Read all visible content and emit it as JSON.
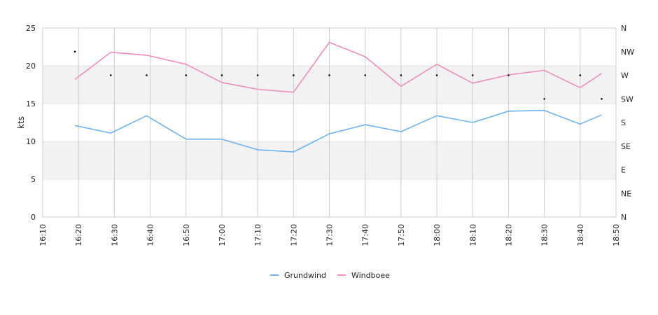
{
  "chart_data": {
    "type": "line",
    "ylabel": "kts",
    "ylim": [
      0,
      25
    ],
    "y_ticks": [
      "0",
      "5",
      "10",
      "15",
      "20",
      "25"
    ],
    "x_range": [
      "16:10",
      "18:50"
    ],
    "x_ticks": [
      "16:10",
      "16:20",
      "16:30",
      "16:40",
      "16:50",
      "17:00",
      "17:10",
      "17:20",
      "17:30",
      "17:40",
      "17:50",
      "18:00",
      "18:10",
      "18:20",
      "18:30",
      "18:40",
      "18:50"
    ],
    "direction_axis_labels": [
      "N",
      "NE",
      "E",
      "SE",
      "S",
      "SW",
      "W",
      "NW",
      "N"
    ],
    "grid": "vertical lines at x ticks; alternating shaded bands 5–10 and 15–20",
    "legend_position": "bottom-center",
    "x": [
      "16:19",
      "16:29",
      "16:39",
      "16:50",
      "17:00",
      "17:10",
      "17:20",
      "17:30",
      "17:40",
      "17:50",
      "18:00",
      "18:10",
      "18:20",
      "18:30",
      "18:40",
      "18:46"
    ],
    "series": [
      {
        "name": "Grundwind",
        "color": "#6eb4f0",
        "values": [
          12.1,
          11.1,
          13.4,
          10.3,
          10.3,
          8.9,
          8.6,
          11.0,
          12.2,
          11.3,
          13.4,
          12.5,
          14.0,
          14.1,
          12.3,
          13.5
        ]
      },
      {
        "name": "Windboee",
        "color": "#f08cbe",
        "values": [
          18.2,
          21.8,
          21.4,
          20.2,
          17.8,
          16.9,
          16.5,
          23.1,
          21.2,
          17.3,
          20.2,
          17.7,
          18.8,
          19.4,
          17.1,
          19.0
        ]
      }
    ],
    "direction_points": [
      "NW",
      "W",
      "W",
      "W",
      "W",
      "W",
      "W",
      "W",
      "W",
      "W",
      "W",
      "W",
      "W",
      "SW",
      "W",
      "SW"
    ]
  }
}
